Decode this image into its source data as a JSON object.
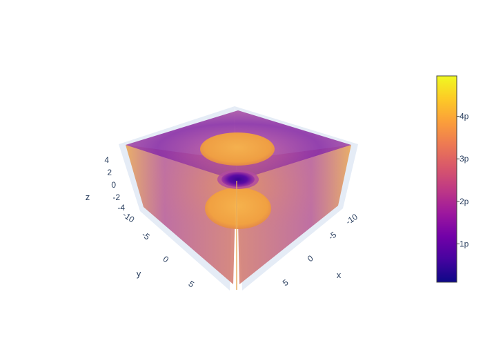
{
  "chart_data": {
    "type": "volume",
    "title": "",
    "axes": {
      "x": {
        "title": "x",
        "range": [
          -10,
          10
        ],
        "ticks": [
          "-10",
          "-5",
          "0",
          "5"
        ]
      },
      "y": {
        "title": "y",
        "range": [
          -10,
          10
        ],
        "ticks": [
          "-10",
          "-5",
          "0",
          "5"
        ]
      },
      "z": {
        "title": "z",
        "range": [
          -5,
          5
        ],
        "ticks": [
          "-4",
          "-2",
          "0",
          "2",
          "4"
        ]
      }
    },
    "colorbar": {
      "colorscale": "plasma",
      "range": [
        0.1,
        4.95
      ],
      "ticks": [
        {
          "value": 1,
          "label": "1p"
        },
        {
          "value": 2,
          "label": "2p"
        },
        {
          "value": 3,
          "label": "3p"
        },
        {
          "value": 4,
          "label": "4p"
        }
      ]
    },
    "features": [
      {
        "name": "upper lobe",
        "position": "z > 0",
        "value": 4.5
      },
      {
        "name": "lower lobe",
        "position": "z < 0",
        "value": 4.5
      },
      {
        "name": "central node",
        "position": "z = 0",
        "value": 0.5
      }
    ],
    "colors": {
      "axis_text": "#2a3f5f",
      "cube_edge": "#e5ecf6",
      "lobe": "#f5a93b",
      "node": "#4a07a0"
    }
  }
}
